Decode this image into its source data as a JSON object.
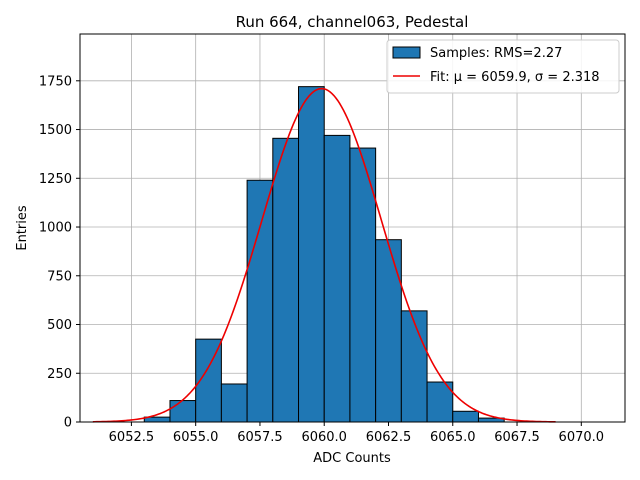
{
  "chart_data": {
    "type": "bar",
    "title": "Run 664, channel063, Pedestal",
    "xlabel": "ADC Counts",
    "ylabel": "Entries",
    "xlim": [
      6050.5,
      6071.7
    ],
    "ylim": [
      0,
      1990
    ],
    "grid": true,
    "legend_position": "top-right",
    "x_ticks": [
      6052.5,
      6055.0,
      6057.5,
      6060.0,
      6062.5,
      6065.0,
      6067.5,
      6070.0
    ],
    "x_tick_labels": [
      "6052.5",
      "6055.0",
      "6057.5",
      "6060.0",
      "6062.5",
      "6065.0",
      "6067.5",
      "6070.0"
    ],
    "y_ticks": [
      0,
      250,
      500,
      750,
      1000,
      1250,
      1500,
      1750
    ],
    "y_tick_labels": [
      "0",
      "250",
      "500",
      "750",
      "1000",
      "1250",
      "1500",
      "1750"
    ],
    "bin_width": 1,
    "bins": [
      {
        "x": 6053,
        "value": 25
      },
      {
        "x": 6054,
        "value": 110
      },
      {
        "x": 6055,
        "value": 425
      },
      {
        "x": 6056,
        "value": 195
      },
      {
        "x": 6057,
        "value": 1240
      },
      {
        "x": 6058,
        "value": 1455
      },
      {
        "x": 6059,
        "value": 1720
      },
      {
        "x": 6060,
        "value": 1470
      },
      {
        "x": 6061,
        "value": 1405
      },
      {
        "x": 6062,
        "value": 935
      },
      {
        "x": 6063,
        "value": 570
      },
      {
        "x": 6064,
        "value": 205
      },
      {
        "x": 6065,
        "value": 55
      },
      {
        "x": 6066,
        "value": 20
      }
    ],
    "fit": {
      "mu": 6059.9,
      "sigma": 2.318,
      "amplitude": 1710,
      "x_range": [
        6051.0,
        6069.0
      ]
    },
    "series": [
      {
        "name": "Samples: RMS=2.27",
        "kind": "histogram",
        "color": "#1f77b4"
      },
      {
        "name": "Fit: μ = 6059.9, σ = 2.318",
        "kind": "line",
        "color": "#ee0000"
      }
    ]
  }
}
